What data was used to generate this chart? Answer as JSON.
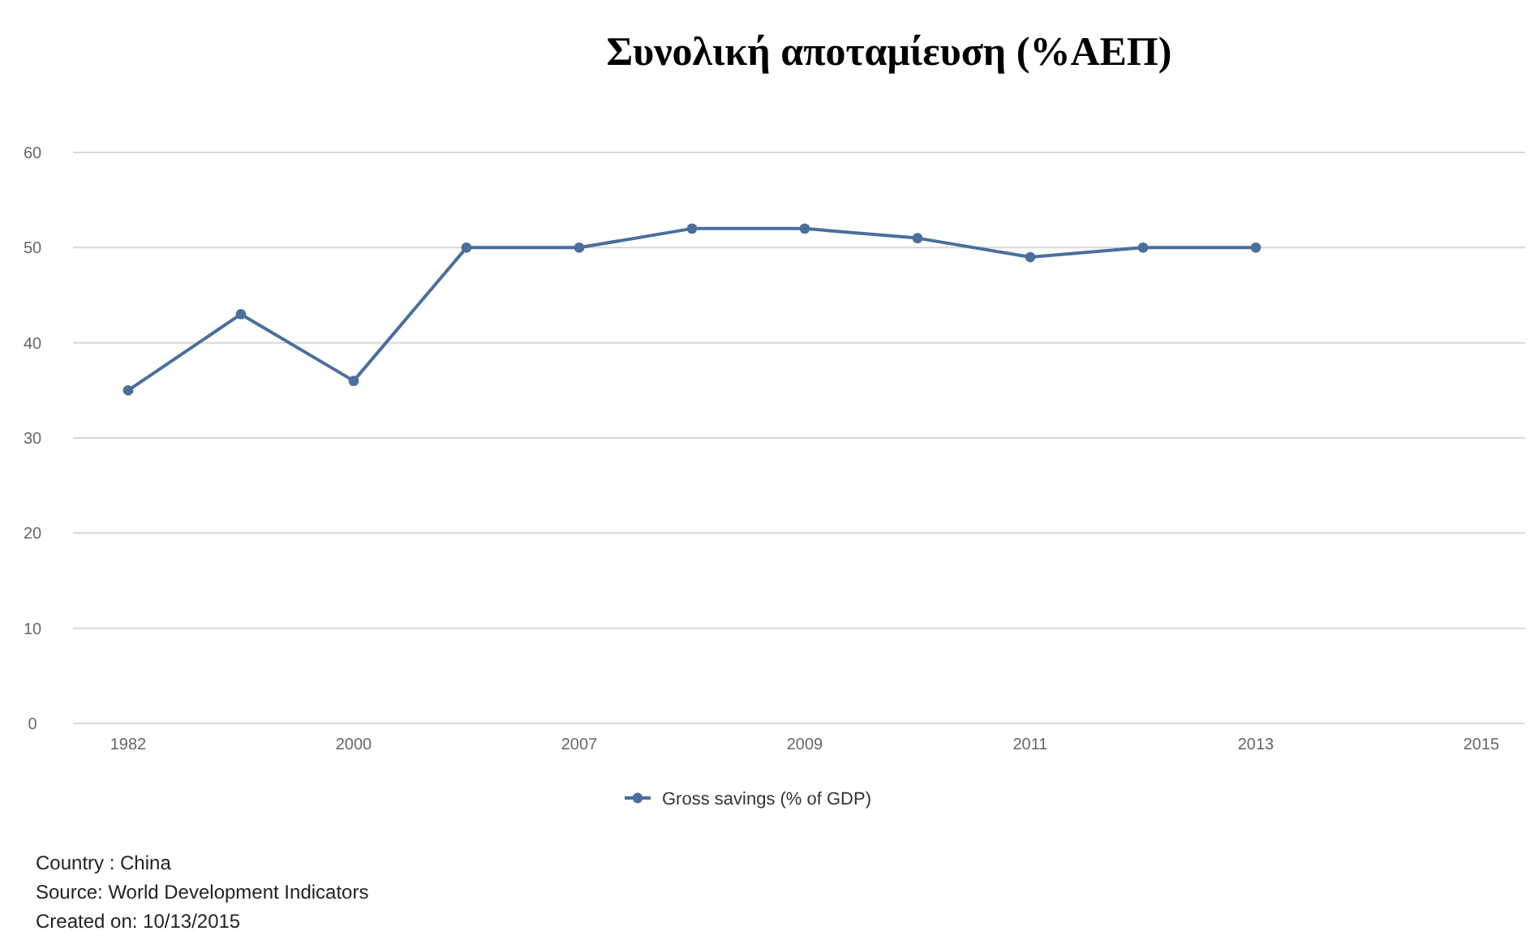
{
  "chart_data": {
    "type": "line",
    "title": "Συνολική αποταμίευση (%ΑΕΠ)",
    "categories": [
      "1982",
      null,
      "2000",
      null,
      "2007",
      null,
      "2009",
      null,
      "2011",
      null,
      "2013",
      null,
      "2015"
    ],
    "series": [
      {
        "name": "Gross savings (% of GDP)",
        "color": "#4a6f9c",
        "values": [
          35,
          43,
          36,
          50,
          50,
          52,
          52,
          51,
          49,
          50,
          50,
          null,
          null
        ]
      }
    ],
    "ylim": [
      0,
      60
    ],
    "yticks": [
      0,
      10,
      20,
      30,
      40,
      50,
      60
    ],
    "grid": "y",
    "legend": "bottom",
    "marker": "circle",
    "line_style": "solid",
    "annotations": [
      "Country : China",
      "Source: World Development Indicators",
      "Created on: 10/13/2015"
    ]
  }
}
